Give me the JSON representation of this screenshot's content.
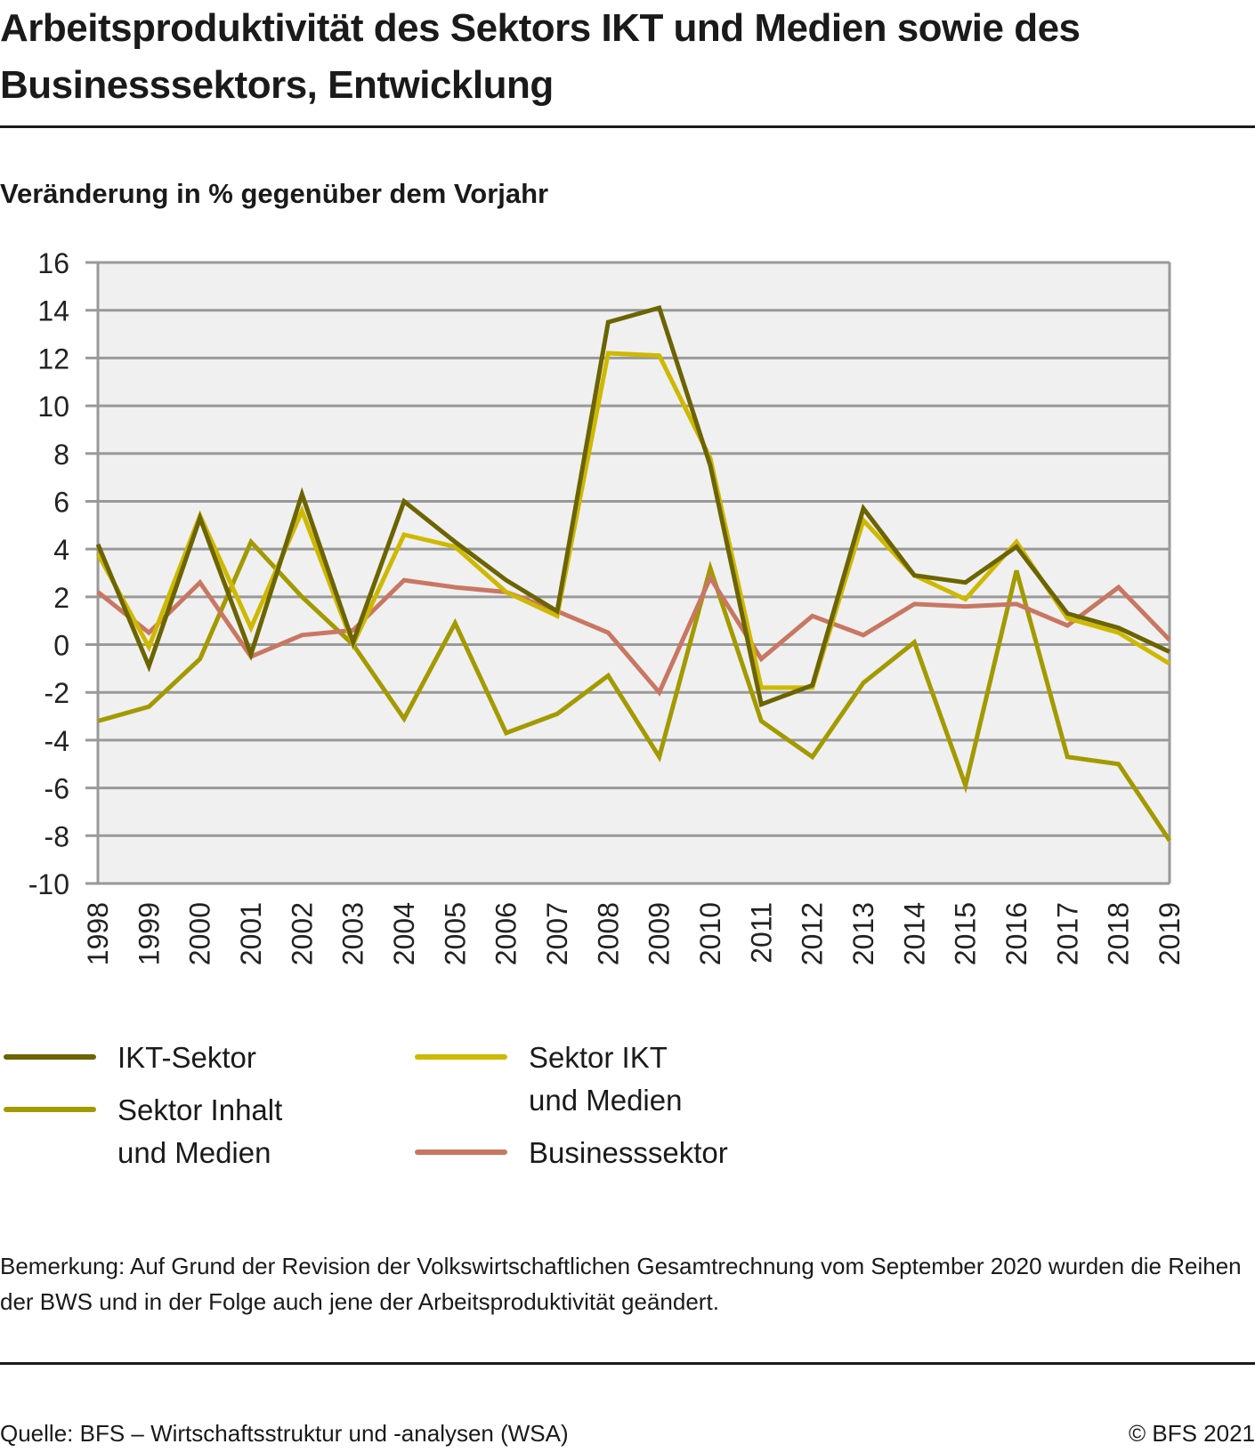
{
  "header": {
    "title": "Arbeitsproduktivität des Sektors IKT und Medien sowie des Businesssektors, Entwicklung",
    "subtitle": "Veränderung in % gegenüber dem Vorjahr"
  },
  "chart_data": {
    "type": "line",
    "title": "Arbeitsproduktivität des Sektors IKT und Medien sowie des Businesssektors, Entwicklung",
    "ylabel": "Veränderung in % gegenüber dem Vorjahr",
    "xlabel": "",
    "ylim": [
      -10,
      16
    ],
    "yticks": [
      "16",
      "14",
      "12",
      "10",
      "8",
      "6",
      "4",
      "2",
      "0",
      "-2",
      "-4",
      "-6",
      "-8",
      "-10"
    ],
    "grid": true,
    "legend_position": "bottom",
    "x": [
      "1998",
      "1999",
      "2000",
      "2001",
      "2002",
      "2003",
      "2004",
      "2005",
      "2006",
      "2007",
      "2008",
      "2009",
      "2010",
      "2011",
      "2012",
      "2013",
      "2014",
      "2015",
      "2016",
      "2017",
      "2018",
      "2019"
    ],
    "series": [
      {
        "name": "Sektor Inhalt und Medien",
        "color": "#a39a00",
        "values": [
          -3.2,
          -2.6,
          -0.6,
          4.3,
          2.0,
          0.0,
          -3.1,
          0.9,
          -3.7,
          -2.9,
          -1.3,
          -4.7,
          3.2,
          -3.2,
          -4.7,
          -1.6,
          0.1,
          -5.9,
          3.1,
          -4.7,
          -5.0,
          -8.2
        ]
      },
      {
        "name": "Businesssektor",
        "color": "#c87762",
        "values": [
          2.2,
          0.5,
          2.6,
          -0.5,
          0.4,
          0.6,
          2.7,
          2.4,
          2.2,
          1.4,
          0.5,
          -2.0,
          2.8,
          -0.6,
          1.2,
          0.4,
          1.7,
          1.6,
          1.7,
          0.8,
          2.4,
          0.2
        ]
      },
      {
        "name": "Sektor IKT und Medien",
        "color": "#ceb900",
        "values": [
          3.8,
          -0.1,
          5.4,
          0.7,
          5.6,
          0.0,
          4.6,
          4.1,
          2.2,
          1.2,
          12.2,
          12.1,
          7.8,
          -1.8,
          -1.8,
          5.2,
          2.9,
          1.9,
          4.3,
          1.1,
          0.5,
          -0.8
        ]
      },
      {
        "name": "IKT-Sektor",
        "color": "#6b6400",
        "values": [
          4.2,
          -0.9,
          5.3,
          -0.4,
          6.3,
          0.1,
          6.0,
          4.3,
          2.7,
          1.4,
          13.5,
          14.1,
          7.5,
          -2.5,
          -1.7,
          5.7,
          2.9,
          2.6,
          4.1,
          1.3,
          0.7,
          -0.3
        ]
      }
    ]
  },
  "legend": [
    {
      "label": "IKT-Sektor",
      "color": "#6b6400"
    },
    {
      "label": "Sektor Inhalt\nund Medien",
      "color": "#a39a00"
    },
    {
      "label": "Sektor IKT\nund Medien",
      "color": "#ceb900"
    },
    {
      "label": "Businesssektor",
      "color": "#c87762"
    }
  ],
  "footer": {
    "note": "Bemerkung: Auf Grund der Revision der Volkswirtschaftlichen Gesamtrechnung vom September 2020 wurden die Reihen der BWS und in der Folge auch jene der Arbeitsproduktivität geändert.",
    "source": "Quelle: BFS – Wirtschaftsstruktur und -analysen (WSA)",
    "copyright": "© BFS 2021"
  }
}
